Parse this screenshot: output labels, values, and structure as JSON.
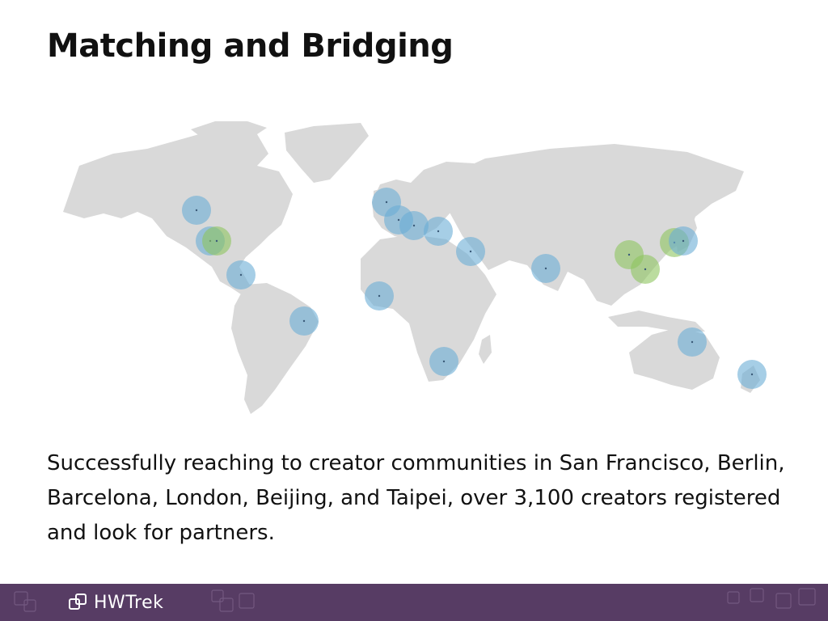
{
  "slide": {
    "title": "Matching and Bridging",
    "body": "Successfully reaching to creator communities in San Francisco, Berlin, Barcelona, London, Beijing, and Taipei, over 3,100 creators registered  and look for partners."
  },
  "colors": {
    "land": "#d9d9d9",
    "marker_blue": "#6baed6",
    "marker_green": "#8ec45f",
    "footer_bg": "#573c64"
  },
  "footer": {
    "brand": "HWTrek",
    "logo_icon": "hwtrek-squares-icon"
  },
  "map_markers": [
    {
      "kind": "blue"
    },
    {
      "kind": "blue"
    },
    {
      "kind": "green"
    },
    {
      "kind": "blue"
    },
    {
      "kind": "blue"
    },
    {
      "kind": "blue"
    },
    {
      "kind": "blue"
    },
    {
      "kind": "blue"
    },
    {
      "kind": "blue"
    },
    {
      "kind": "blue"
    },
    {
      "kind": "blue"
    },
    {
      "kind": "blue"
    },
    {
      "kind": "blue"
    },
    {
      "kind": "green"
    },
    {
      "kind": "green"
    },
    {
      "kind": "green"
    },
    {
      "kind": "blue"
    },
    {
      "kind": "blue"
    },
    {
      "kind": "blue"
    }
  ]
}
